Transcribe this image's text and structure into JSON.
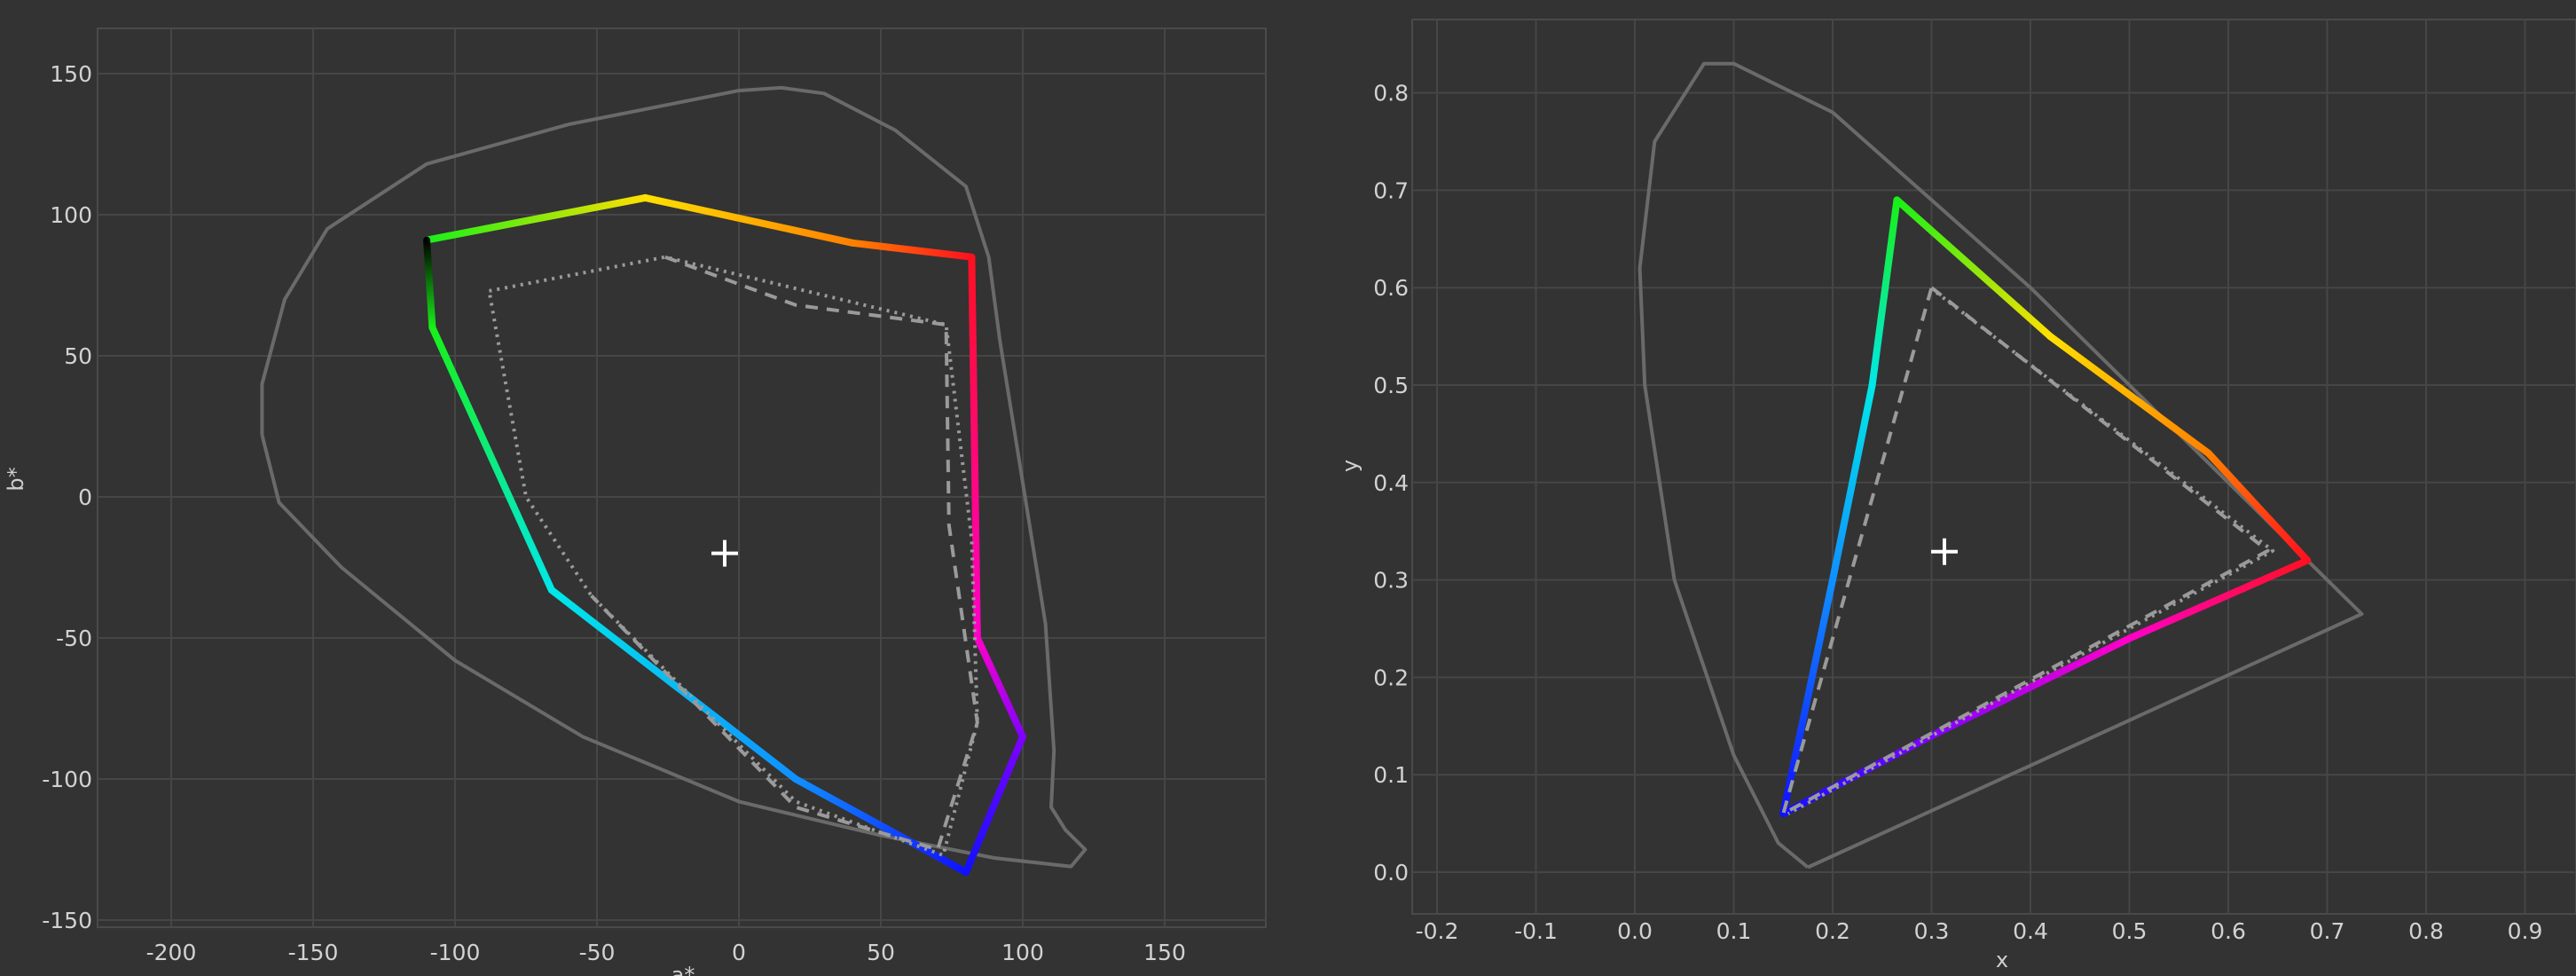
{
  "chart_data": [
    {
      "type": "line",
      "title": "",
      "xlabel": "a*",
      "ylabel": "b*",
      "xlim": [
        -230,
        185
      ],
      "ylim": [
        -150,
        165
      ],
      "x_ticks": [
        "-200",
        "-150",
        "-100",
        "-50",
        "0",
        "50",
        "100",
        "150"
      ],
      "y_ticks": [
        "150",
        "100",
        "50",
        "0",
        "-50",
        "-100",
        "-150"
      ],
      "grid": true,
      "series": [
        {
          "role": "visible-spectrum-boundary",
          "color": "#6a6a6a",
          "points": [
            [
              -168,
              22
            ],
            [
              -162,
              -2
            ],
            [
              -140,
              -25
            ],
            [
              -100,
              -58
            ],
            [
              -55,
              -85
            ],
            [
              0,
              -108
            ],
            [
              50,
              -120
            ],
            [
              90,
              -128
            ],
            [
              117,
              -131
            ],
            [
              122,
              -125
            ],
            [
              115,
              -118
            ],
            [
              110,
              -110
            ],
            [
              111,
              -90
            ],
            [
              108,
              -45
            ],
            [
              100,
              5
            ],
            [
              92,
              55
            ],
            [
              88,
              85
            ],
            [
              80,
              110
            ],
            [
              55,
              130
            ],
            [
              30,
              143
            ],
            [
              15,
              145
            ],
            [
              0,
              144
            ],
            [
              -60,
              132
            ],
            [
              -110,
              118
            ],
            [
              -145,
              95
            ],
            [
              -160,
              70
            ],
            [
              -168,
              40
            ],
            [
              -168,
              22
            ]
          ]
        },
        {
          "role": "target-gamut",
          "colors": [
            "#18f018",
            "#ffe000",
            "#ff8000",
            "#ff1020",
            "#ff00c8",
            "#8000ff",
            "#1010ff",
            "#1090ff",
            "#00e8e8",
            "#18f018"
          ],
          "points": [
            [
              -110,
              91
            ],
            [
              -33,
              106
            ],
            [
              40,
              90
            ],
            [
              82,
              85
            ],
            [
              84,
              -50
            ],
            [
              100,
              -85
            ],
            [
              80,
              -133
            ],
            [
              20,
              -100
            ],
            [
              -66,
              -33
            ],
            [
              -108,
              60
            ],
            [
              -110,
              91
            ]
          ]
        },
        {
          "role": "reference-gamut-dashed",
          "color": "#9a9a9a",
          "style": "dashed",
          "points": [
            [
              -26,
              85
            ],
            [
              20,
              68
            ],
            [
              73,
              61
            ],
            [
              74,
              -10
            ],
            [
              84,
              -80
            ],
            [
              70,
              -125
            ],
            [
              20,
              -110
            ],
            [
              -52,
              -35
            ]
          ]
        },
        {
          "role": "reference-gamut-dotted",
          "color": "#9a9a9a",
          "style": "dotted",
          "points": [
            [
              -88,
              73
            ],
            [
              -26,
              85
            ],
            [
              73,
              61
            ],
            [
              82,
              -15
            ],
            [
              84,
              -80
            ],
            [
              72,
              -127
            ],
            [
              20,
              -108
            ],
            [
              -52,
              -35
            ],
            [
              -75,
              0
            ],
            [
              -88,
              73
            ]
          ]
        }
      ],
      "white_point": [
        -5,
        -20
      ]
    },
    {
      "type": "line",
      "title": "",
      "xlabel": "x",
      "ylabel": "y",
      "xlim": [
        -0.235,
        0.96
      ],
      "ylim": [
        -0.04,
        0.88
      ],
      "x_ticks": [
        "-0.2",
        "-0.1",
        "0.0",
        "0.1",
        "0.2",
        "0.3",
        "0.4",
        "0.5",
        "0.6",
        "0.7",
        "0.8",
        "0.9"
      ],
      "y_ticks": [
        "0.8",
        "0.7",
        "0.6",
        "0.5",
        "0.4",
        "0.3",
        "0.2",
        "0.1",
        "0.0"
      ],
      "grid": true,
      "series": [
        {
          "role": "spectral-locus",
          "color": "#6a6a6a",
          "points": [
            [
              0.175,
              0.005
            ],
            [
              0.145,
              0.03
            ],
            [
              0.1,
              0.12
            ],
            [
              0.04,
              0.3
            ],
            [
              0.01,
              0.5
            ],
            [
              0.005,
              0.62
            ],
            [
              0.02,
              0.75
            ],
            [
              0.07,
              0.83
            ],
            [
              0.1,
              0.83
            ],
            [
              0.2,
              0.78
            ],
            [
              0.3,
              0.69
            ],
            [
              0.4,
              0.6
            ],
            [
              0.5,
              0.5
            ],
            [
              0.6,
              0.4
            ],
            [
              0.7,
              0.3
            ],
            [
              0.735,
              0.265
            ],
            [
              0.175,
              0.005
            ]
          ]
        },
        {
          "role": "target-gamut",
          "colors": [
            "#18f018",
            "#ffe000",
            "#ff8000",
            "#ff1020",
            "#ff00c8",
            "#8000ff",
            "#1010ff",
            "#1090ff",
            "#00e8e8",
            "#18f018"
          ],
          "points": [
            [
              0.265,
              0.69
            ],
            [
              0.42,
              0.55
            ],
            [
              0.58,
              0.43
            ],
            [
              0.68,
              0.32
            ],
            [
              0.5,
              0.24
            ],
            [
              0.3,
              0.14
            ],
            [
              0.15,
              0.06
            ],
            [
              0.2,
              0.3
            ],
            [
              0.24,
              0.5
            ],
            [
              0.265,
              0.69
            ]
          ]
        },
        {
          "role": "reference-gamut-dashed",
          "color": "#9a9a9a",
          "style": "dashed",
          "points": [
            [
              0.3,
              0.6
            ],
            [
              0.64,
              0.33
            ],
            [
              0.15,
              0.06
            ],
            [
              0.3,
              0.6
            ]
          ]
        },
        {
          "role": "reference-gamut-dotted",
          "color": "#9a9a9a",
          "style": "dotted",
          "points": [
            [
              0.305,
              0.595
            ],
            [
              0.645,
              0.33
            ],
            [
              0.155,
              0.06
            ]
          ]
        }
      ],
      "white_point": [
        0.313,
        0.329
      ]
    }
  ]
}
